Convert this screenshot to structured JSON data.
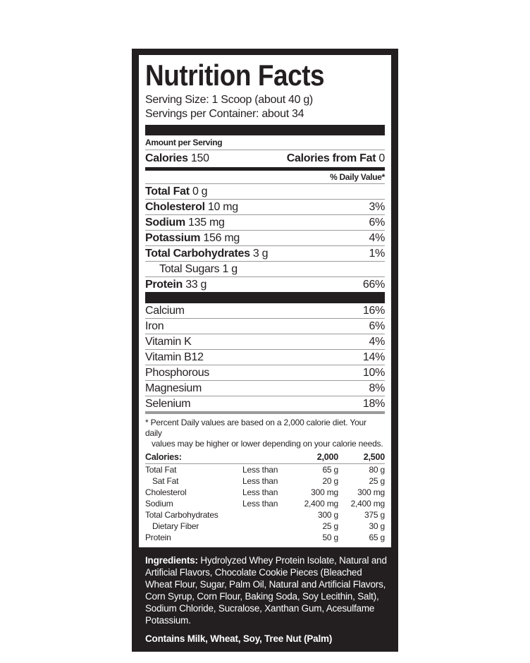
{
  "title": "Nutrition Facts",
  "serving_size": "Serving Size: 1 Scoop (about 40 g)",
  "servings_per_container": "Servings per Container: about 34",
  "amount_per_serving": "Amount per Serving",
  "calories": {
    "label": "Calories",
    "value": "150",
    "fat_label": "Calories from Fat",
    "fat_value": "0"
  },
  "daily_value_header": "% Daily Value*",
  "nutrients": [
    {
      "name": "Total Fat",
      "amount": "0 g",
      "dv": "",
      "bold": true
    },
    {
      "name": "Cholesterol",
      "amount": "10 mg",
      "dv": "3%",
      "bold": true
    },
    {
      "name": "Sodium",
      "amount": "135 mg",
      "dv": "6%",
      "bold": true
    },
    {
      "name": "Potassium",
      "amount": "156 mg",
      "dv": "4%",
      "bold": true
    },
    {
      "name": "Total Carbohydrates",
      "amount": "3 g",
      "dv": "1%",
      "bold": true
    },
    {
      "name": "Total Sugars",
      "amount": "1 g",
      "dv": "",
      "bold": false
    },
    {
      "name": "Protein",
      "amount": "33 g",
      "dv": "66%",
      "bold": true
    }
  ],
  "vitamins": [
    {
      "name": "Calcium",
      "dv": "16%"
    },
    {
      "name": "Iron",
      "dv": "6%"
    },
    {
      "name": "Vitamin K",
      "dv": "4%"
    },
    {
      "name": "Vitamin B12",
      "dv": "14%"
    },
    {
      "name": "Phosphorous",
      "dv": "10%"
    },
    {
      "name": "Magnesium",
      "dv": "8%"
    },
    {
      "name": "Selenium",
      "dv": "18%"
    }
  ],
  "footnote_1": "* Percent Daily values are based on a 2,000 calorie diet. Your daily",
  "footnote_2": "values may be higher or lower depending on your calorie needs.",
  "dv_table": {
    "header": [
      "Calories:",
      "",
      "2,000",
      "2,500"
    ],
    "rows": [
      [
        "Total Fat",
        "Less than",
        "65 g",
        "80 g"
      ],
      [
        "Sat Fat",
        "Less than",
        "20 g",
        "25 g"
      ],
      [
        "Cholesterol",
        "Less than",
        "300 mg",
        "300 mg"
      ],
      [
        "Sodium",
        "Less than",
        "2,400 mg",
        "2,400 mg"
      ],
      [
        "Total Carbohydrates",
        "",
        "300 g",
        "375 g"
      ],
      [
        "Dietary Fiber",
        "",
        "25 g",
        "30 g"
      ],
      [
        "Protein",
        "",
        "50 g",
        "65 g"
      ]
    ]
  },
  "ingredients_label": "Ingredients:",
  "ingredients_text": "Hydrolyzed Whey Protein Isolate, Natural and Artificial Flavors, Chocolate Cookie Pieces (Bleached Wheat Flour, Sugar, Palm Oil, Natural and Artificial Flavors, Corn Syrup, Corn Flour, Baking Soda, Soy Lecithin, Salt), Sodium Chloride, Sucralose, Xanthan Gum, Acesulfame Potassium.",
  "contains": "Contains Milk, Wheat, Soy, Tree Nut (Palm)",
  "colors": {
    "ink": "#231f20",
    "background": "#ffffff"
  }
}
